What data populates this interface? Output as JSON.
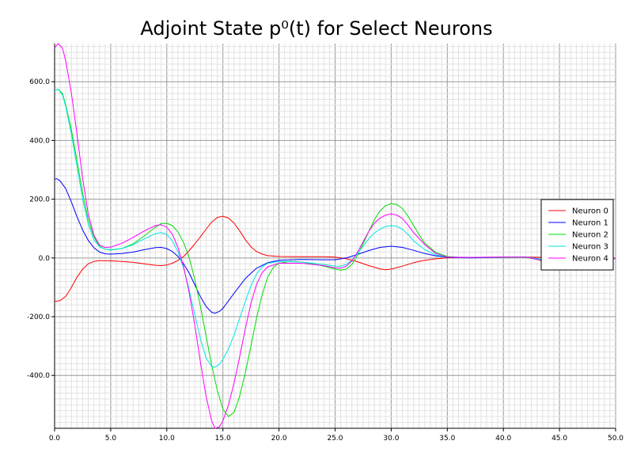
{
  "chart_data": {
    "type": "line",
    "title": "Adjoint State p⁰(t) for Select Neurons",
    "xlabel": "",
    "ylabel": "",
    "xlim": [
      0,
      50
    ],
    "ylim": [
      -580,
      730
    ],
    "x_ticks": [
      0,
      5,
      10,
      15,
      20,
      25,
      30,
      35,
      40,
      45,
      50
    ],
    "x_tick_labels": [
      "0.0",
      "5.0",
      "10.0",
      "15.0",
      "20.0",
      "25.0",
      "30.0",
      "35.0",
      "40.0",
      "45.0",
      "50.0"
    ],
    "y_ticks": [
      -400,
      -200,
      0,
      200,
      400,
      600
    ],
    "y_tick_labels": [
      "-400.0",
      "-200.0",
      "0.0",
      "200.0",
      "400.0",
      "600.0"
    ],
    "grid": true,
    "legend_position": "right",
    "series": [
      {
        "name": "Neuron 0",
        "color": "#ff0000",
        "points": [
          [
            0,
            -148
          ],
          [
            0.5,
            -145
          ],
          [
            1,
            -130
          ],
          [
            1.5,
            -100
          ],
          [
            2,
            -65
          ],
          [
            2.5,
            -38
          ],
          [
            3,
            -20
          ],
          [
            3.5,
            -12
          ],
          [
            4,
            -9
          ],
          [
            5,
            -10
          ],
          [
            6,
            -12
          ],
          [
            7,
            -15
          ],
          [
            8,
            -20
          ],
          [
            9,
            -25
          ],
          [
            9.5,
            -26
          ],
          [
            10,
            -24
          ],
          [
            10.5,
            -18
          ],
          [
            11,
            -8
          ],
          [
            11.5,
            5
          ],
          [
            12,
            25
          ],
          [
            12.5,
            48
          ],
          [
            13,
            72
          ],
          [
            13.5,
            98
          ],
          [
            14,
            122
          ],
          [
            14.5,
            138
          ],
          [
            15,
            142
          ],
          [
            15.5,
            136
          ],
          [
            16,
            118
          ],
          [
            16.5,
            92
          ],
          [
            17,
            62
          ],
          [
            17.5,
            38
          ],
          [
            18,
            22
          ],
          [
            18.5,
            13
          ],
          [
            19,
            8
          ],
          [
            20,
            5
          ],
          [
            22,
            4
          ],
          [
            24,
            4
          ],
          [
            25,
            3
          ],
          [
            26,
            -3
          ],
          [
            27,
            -13
          ],
          [
            28,
            -26
          ],
          [
            29,
            -37
          ],
          [
            29.5,
            -40
          ],
          [
            30,
            -38
          ],
          [
            31,
            -28
          ],
          [
            32,
            -16
          ],
          [
            33,
            -8
          ],
          [
            34,
            -3
          ],
          [
            35,
            0
          ],
          [
            37,
            2
          ],
          [
            40,
            3
          ],
          [
            42,
            3
          ],
          [
            44,
            2
          ],
          [
            46,
            -1
          ],
          [
            48,
            -2
          ],
          [
            50,
            -1
          ]
        ]
      },
      {
        "name": "Neuron 1",
        "color": "#0000ff",
        "points": [
          [
            0,
            268
          ],
          [
            0.2,
            270
          ],
          [
            0.5,
            262
          ],
          [
            1,
            235
          ],
          [
            1.5,
            190
          ],
          [
            2,
            140
          ],
          [
            2.5,
            95
          ],
          [
            3,
            60
          ],
          [
            3.5,
            35
          ],
          [
            4,
            20
          ],
          [
            4.5,
            14
          ],
          [
            5,
            13
          ],
          [
            6,
            15
          ],
          [
            7,
            20
          ],
          [
            8,
            28
          ],
          [
            9,
            35
          ],
          [
            9.5,
            36
          ],
          [
            10,
            32
          ],
          [
            10.5,
            22
          ],
          [
            11,
            5
          ],
          [
            11.5,
            -20
          ],
          [
            12,
            -52
          ],
          [
            12.5,
            -92
          ],
          [
            13,
            -132
          ],
          [
            13.5,
            -165
          ],
          [
            14,
            -185
          ],
          [
            14.3,
            -188
          ],
          [
            14.7,
            -182
          ],
          [
            15,
            -172
          ],
          [
            16,
            -120
          ],
          [
            17,
            -70
          ],
          [
            18,
            -35
          ],
          [
            19,
            -16
          ],
          [
            20,
            -8
          ],
          [
            22,
            -5
          ],
          [
            24,
            -6
          ],
          [
            25,
            -6
          ],
          [
            26,
            0
          ],
          [
            27,
            12
          ],
          [
            28,
            25
          ],
          [
            29,
            36
          ],
          [
            30,
            40
          ],
          [
            31,
            36
          ],
          [
            32,
            26
          ],
          [
            33,
            15
          ],
          [
            34,
            7
          ],
          [
            35,
            2
          ],
          [
            37,
            0
          ],
          [
            40,
            2
          ],
          [
            42,
            3
          ],
          [
            43,
            -2
          ],
          [
            44,
            -12
          ],
          [
            45,
            -22
          ],
          [
            46,
            -24
          ],
          [
            47,
            -18
          ],
          [
            48,
            -10
          ],
          [
            49,
            -4
          ],
          [
            50,
            -2
          ]
        ]
      },
      {
        "name": "Neuron 2",
        "color": "#00dd00",
        "points": [
          [
            0,
            568
          ],
          [
            0.3,
            575
          ],
          [
            0.7,
            560
          ],
          [
            1,
            520
          ],
          [
            1.5,
            435
          ],
          [
            2,
            330
          ],
          [
            2.5,
            220
          ],
          [
            3,
            130
          ],
          [
            3.5,
            72
          ],
          [
            4,
            40
          ],
          [
            4.5,
            30
          ],
          [
            5,
            27
          ],
          [
            6,
            32
          ],
          [
            7,
            48
          ],
          [
            8,
            75
          ],
          [
            9,
            105
          ],
          [
            9.5,
            117
          ],
          [
            10,
            118
          ],
          [
            10.5,
            110
          ],
          [
            11,
            88
          ],
          [
            11.5,
            52
          ],
          [
            12,
            0
          ],
          [
            12.5,
            -75
          ],
          [
            13,
            -165
          ],
          [
            13.5,
            -265
          ],
          [
            14,
            -365
          ],
          [
            14.5,
            -450
          ],
          [
            15,
            -515
          ],
          [
            15.5,
            -540
          ],
          [
            16,
            -525
          ],
          [
            16.5,
            -470
          ],
          [
            17,
            -390
          ],
          [
            17.5,
            -300
          ],
          [
            18,
            -205
          ],
          [
            18.5,
            -125
          ],
          [
            19,
            -65
          ],
          [
            19.5,
            -32
          ],
          [
            20,
            -18
          ],
          [
            21,
            -12
          ],
          [
            22,
            -14
          ],
          [
            23,
            -20
          ],
          [
            24,
            -28
          ],
          [
            25,
            -38
          ],
          [
            25.5,
            -42
          ],
          [
            26,
            -38
          ],
          [
            26.5,
            -22
          ],
          [
            27,
            10
          ],
          [
            27.5,
            48
          ],
          [
            28,
            90
          ],
          [
            28.5,
            130
          ],
          [
            29,
            160
          ],
          [
            29.5,
            178
          ],
          [
            30,
            185
          ],
          [
            30.5,
            182
          ],
          [
            31,
            168
          ],
          [
            31.5,
            142
          ],
          [
            32,
            110
          ],
          [
            32.5,
            78
          ],
          [
            33,
            50
          ],
          [
            34,
            18
          ],
          [
            35,
            5
          ],
          [
            36,
            2
          ],
          [
            38,
            2
          ],
          [
            40,
            2
          ],
          [
            42,
            2
          ],
          [
            43,
            -5
          ],
          [
            44,
            -15
          ],
          [
            45,
            -24
          ],
          [
            46,
            -25
          ],
          [
            47,
            -19
          ],
          [
            48,
            -11
          ],
          [
            49,
            -5
          ],
          [
            50,
            -2
          ]
        ]
      },
      {
        "name": "Neuron 3",
        "color": "#00e5e5",
        "points": [
          [
            0,
            568
          ],
          [
            0.3,
            575
          ],
          [
            0.7,
            555
          ],
          [
            1,
            515
          ],
          [
            1.5,
            420
          ],
          [
            2,
            310
          ],
          [
            2.5,
            200
          ],
          [
            3,
            115
          ],
          [
            3.5,
            62
          ],
          [
            4,
            38
          ],
          [
            4.5,
            30
          ],
          [
            5,
            28
          ],
          [
            6,
            32
          ],
          [
            7,
            45
          ],
          [
            8,
            65
          ],
          [
            9,
            83
          ],
          [
            9.5,
            86
          ],
          [
            10,
            80
          ],
          [
            10.5,
            58
          ],
          [
            11,
            20
          ],
          [
            11.5,
            -35
          ],
          [
            12,
            -110
          ],
          [
            12.5,
            -195
          ],
          [
            13,
            -275
          ],
          [
            13.5,
            -340
          ],
          [
            14,
            -370
          ],
          [
            14.3,
            -372
          ],
          [
            14.7,
            -362
          ],
          [
            15,
            -345
          ],
          [
            15.5,
            -310
          ],
          [
            16,
            -262
          ],
          [
            16.5,
            -205
          ],
          [
            17,
            -148
          ],
          [
            17.5,
            -95
          ],
          [
            18,
            -55
          ],
          [
            18.5,
            -30
          ],
          [
            19,
            -18
          ],
          [
            20,
            -12
          ],
          [
            22,
            -14
          ],
          [
            24,
            -22
          ],
          [
            25,
            -28
          ],
          [
            25.5,
            -28
          ],
          [
            26,
            -22
          ],
          [
            26.5,
            -8
          ],
          [
            27,
            15
          ],
          [
            27.5,
            40
          ],
          [
            28,
            65
          ],
          [
            28.5,
            85
          ],
          [
            29,
            98
          ],
          [
            29.5,
            107
          ],
          [
            30,
            110
          ],
          [
            30.5,
            108
          ],
          [
            31,
            98
          ],
          [
            31.5,
            80
          ],
          [
            32,
            58
          ],
          [
            33,
            28
          ],
          [
            34,
            10
          ],
          [
            35,
            3
          ],
          [
            37,
            2
          ],
          [
            40,
            3
          ],
          [
            42,
            3
          ],
          [
            43,
            -3
          ],
          [
            44,
            -12
          ],
          [
            45,
            -20
          ],
          [
            46,
            -21
          ],
          [
            47,
            -16
          ],
          [
            48,
            -9
          ],
          [
            49,
            -4
          ],
          [
            50,
            -2
          ]
        ]
      },
      {
        "name": "Neuron 4",
        "color": "#ff00ff",
        "points": [
          [
            0,
            715
          ],
          [
            0.3,
            730
          ],
          [
            0.7,
            715
          ],
          [
            1,
            670
          ],
          [
            1.5,
            560
          ],
          [
            2,
            420
          ],
          [
            2.5,
            270
          ],
          [
            3,
            150
          ],
          [
            3.5,
            78
          ],
          [
            4,
            44
          ],
          [
            4.5,
            36
          ],
          [
            5,
            37
          ],
          [
            6,
            50
          ],
          [
            7,
            70
          ],
          [
            8,
            92
          ],
          [
            9,
            110
          ],
          [
            9.5,
            113
          ],
          [
            10,
            105
          ],
          [
            10.5,
            80
          ],
          [
            11,
            35
          ],
          [
            11.5,
            -30
          ],
          [
            12,
            -120
          ],
          [
            12.5,
            -230
          ],
          [
            13,
            -355
          ],
          [
            13.5,
            -470
          ],
          [
            14,
            -555
          ],
          [
            14.3,
            -580
          ],
          [
            14.7,
            -575
          ],
          [
            15,
            -555
          ],
          [
            15.5,
            -500
          ],
          [
            16,
            -425
          ],
          [
            16.5,
            -335
          ],
          [
            17,
            -240
          ],
          [
            17.5,
            -155
          ],
          [
            18,
            -90
          ],
          [
            18.5,
            -50
          ],
          [
            19,
            -30
          ],
          [
            20,
            -18
          ],
          [
            22,
            -18
          ],
          [
            24,
            -26
          ],
          [
            25,
            -34
          ],
          [
            25.5,
            -35
          ],
          [
            26,
            -28
          ],
          [
            26.5,
            -10
          ],
          [
            27,
            20
          ],
          [
            27.5,
            55
          ],
          [
            28,
            90
          ],
          [
            28.5,
            118
          ],
          [
            29,
            136
          ],
          [
            29.5,
            146
          ],
          [
            30,
            150
          ],
          [
            30.5,
            146
          ],
          [
            31,
            134
          ],
          [
            31.5,
            112
          ],
          [
            32,
            86
          ],
          [
            33,
            45
          ],
          [
            34,
            15
          ],
          [
            35,
            3
          ],
          [
            37,
            2
          ],
          [
            40,
            3
          ],
          [
            42,
            3
          ],
          [
            43,
            -5
          ],
          [
            44,
            -17
          ],
          [
            45,
            -27
          ],
          [
            46,
            -28
          ],
          [
            47,
            -22
          ],
          [
            48,
            -13
          ],
          [
            49,
            -6
          ],
          [
            50,
            -2
          ]
        ]
      }
    ]
  }
}
